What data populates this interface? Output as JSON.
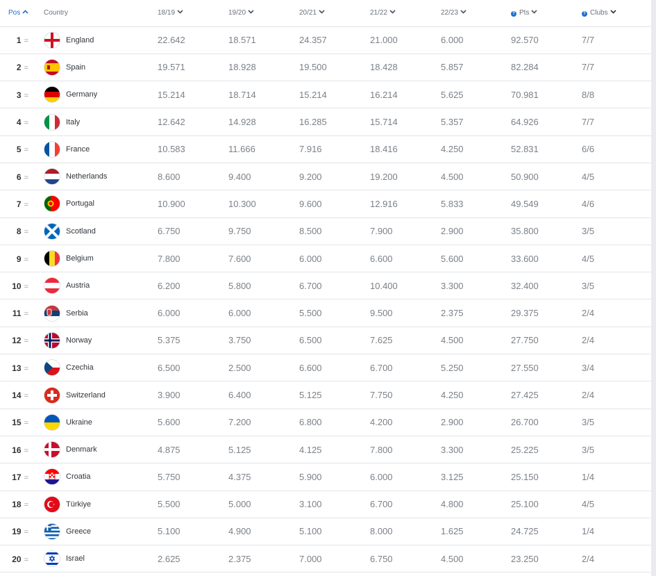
{
  "header": {
    "pos": "Pos",
    "country": "Country",
    "seasons": [
      "18/19",
      "19/20",
      "20/21",
      "21/22",
      "22/23"
    ],
    "pts": "Pts",
    "clubs": "Clubs"
  },
  "rows": [
    {
      "pos": "1",
      "country": "England",
      "flag": "england-flag-icon",
      "s": [
        "22.642",
        "18.571",
        "24.357",
        "21.000",
        "6.000"
      ],
      "pts": "92.570",
      "clubs": "7/7"
    },
    {
      "pos": "2",
      "country": "Spain",
      "flag": "spain-flag-icon",
      "s": [
        "19.571",
        "18.928",
        "19.500",
        "18.428",
        "5.857"
      ],
      "pts": "82.284",
      "clubs": "7/7"
    },
    {
      "pos": "3",
      "country": "Germany",
      "flag": "germany-flag-icon",
      "s": [
        "15.214",
        "18.714",
        "15.214",
        "16.214",
        "5.625"
      ],
      "pts": "70.981",
      "clubs": "8/8"
    },
    {
      "pos": "4",
      "country": "Italy",
      "flag": "italy-flag-icon",
      "s": [
        "12.642",
        "14.928",
        "16.285",
        "15.714",
        "5.357"
      ],
      "pts": "64.926",
      "clubs": "7/7"
    },
    {
      "pos": "5",
      "country": "France",
      "flag": "france-flag-icon",
      "s": [
        "10.583",
        "11.666",
        "7.916",
        "18.416",
        "4.250"
      ],
      "pts": "52.831",
      "clubs": "6/6"
    },
    {
      "pos": "6",
      "country": "Netherlands",
      "flag": "netherlands-flag-icon",
      "s": [
        "8.600",
        "9.400",
        "9.200",
        "19.200",
        "4.500"
      ],
      "pts": "50.900",
      "clubs": "4/5"
    },
    {
      "pos": "7",
      "country": "Portugal",
      "flag": "portugal-flag-icon",
      "s": [
        "10.900",
        "10.300",
        "9.600",
        "12.916",
        "5.833"
      ],
      "pts": "49.549",
      "clubs": "4/6"
    },
    {
      "pos": "8",
      "country": "Scotland",
      "flag": "scotland-flag-icon",
      "s": [
        "6.750",
        "9.750",
        "8.500",
        "7.900",
        "2.900"
      ],
      "pts": "35.800",
      "clubs": "3/5"
    },
    {
      "pos": "9",
      "country": "Belgium",
      "flag": "belgium-flag-icon",
      "s": [
        "7.800",
        "7.600",
        "6.000",
        "6.600",
        "5.600"
      ],
      "pts": "33.600",
      "clubs": "4/5"
    },
    {
      "pos": "10",
      "country": "Austria",
      "flag": "austria-flag-icon",
      "s": [
        "6.200",
        "5.800",
        "6.700",
        "10.400",
        "3.300"
      ],
      "pts": "32.400",
      "clubs": "3/5"
    },
    {
      "pos": "11",
      "country": "Serbia",
      "flag": "serbia-flag-icon",
      "s": [
        "6.000",
        "6.000",
        "5.500",
        "9.500",
        "2.375"
      ],
      "pts": "29.375",
      "clubs": "2/4"
    },
    {
      "pos": "12",
      "country": "Norway",
      "flag": "norway-flag-icon",
      "s": [
        "5.375",
        "3.750",
        "6.500",
        "7.625",
        "4.500"
      ],
      "pts": "27.750",
      "clubs": "2/4"
    },
    {
      "pos": "13",
      "country": "Czechia",
      "flag": "czechia-flag-icon",
      "s": [
        "6.500",
        "2.500",
        "6.600",
        "6.700",
        "5.250"
      ],
      "pts": "27.550",
      "clubs": "3/4"
    },
    {
      "pos": "14",
      "country": "Switzerland",
      "flag": "switzerland-flag-icon",
      "s": [
        "3.900",
        "6.400",
        "5.125",
        "7.750",
        "4.250"
      ],
      "pts": "27.425",
      "clubs": "2/4"
    },
    {
      "pos": "15",
      "country": "Ukraine",
      "flag": "ukraine-flag-icon",
      "s": [
        "5.600",
        "7.200",
        "6.800",
        "4.200",
        "2.900"
      ],
      "pts": "26.700",
      "clubs": "3/5"
    },
    {
      "pos": "16",
      "country": "Denmark",
      "flag": "denmark-flag-icon",
      "s": [
        "4.875",
        "5.125",
        "4.125",
        "7.800",
        "3.300"
      ],
      "pts": "25.225",
      "clubs": "3/5"
    },
    {
      "pos": "17",
      "country": "Croatia",
      "flag": "croatia-flag-icon",
      "s": [
        "5.750",
        "4.375",
        "5.900",
        "6.000",
        "3.125"
      ],
      "pts": "25.150",
      "clubs": "1/4"
    },
    {
      "pos": "18",
      "country": "Türkiye",
      "flag": "turkiye-flag-icon",
      "s": [
        "5.500",
        "5.000",
        "3.100",
        "6.700",
        "4.800"
      ],
      "pts": "25.100",
      "clubs": "4/5"
    },
    {
      "pos": "19",
      "country": "Greece",
      "flag": "greece-flag-icon",
      "s": [
        "5.100",
        "4.900",
        "5.100",
        "8.000",
        "1.625"
      ],
      "pts": "24.725",
      "clubs": "1/4"
    },
    {
      "pos": "20",
      "country": "Israel",
      "flag": "israel-flag-icon",
      "s": [
        "2.625",
        "2.375",
        "7.000",
        "6.750",
        "4.500"
      ],
      "pts": "23.250",
      "clubs": "2/4"
    }
  ],
  "colors": {
    "accent": "#1e6fd2",
    "text": "#2f343a",
    "muted": "#7b8188"
  }
}
